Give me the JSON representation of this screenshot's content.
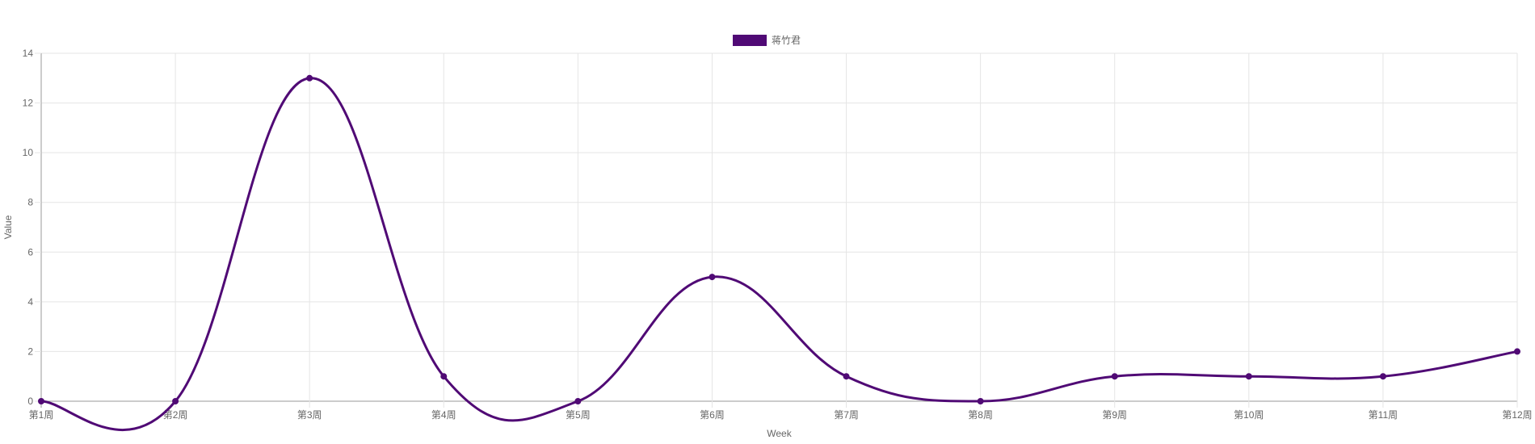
{
  "chart_data": {
    "type": "line",
    "x": [
      "第1周",
      "第2周",
      "第3周",
      "第4周",
      "第5周",
      "第6周",
      "第7周",
      "第8周",
      "第9周",
      "第10周",
      "第11周",
      "第12周"
    ],
    "series": [
      {
        "name": "蒋竹君",
        "values": [
          0,
          0,
          13,
          1,
          0,
          5,
          1,
          0,
          1,
          1,
          1,
          2
        ]
      }
    ],
    "xlabel": "Week",
    "ylabel": "Value",
    "ylim": [
      0,
      14
    ],
    "yticks": [
      0,
      2,
      4,
      6,
      8,
      10,
      12,
      14
    ],
    "grid": true,
    "legend_position": "top",
    "smooth": true,
    "colors": {
      "series": "#500a75",
      "grid": "#e5e5e5",
      "axis": "#999999",
      "text": "#666666"
    }
  }
}
